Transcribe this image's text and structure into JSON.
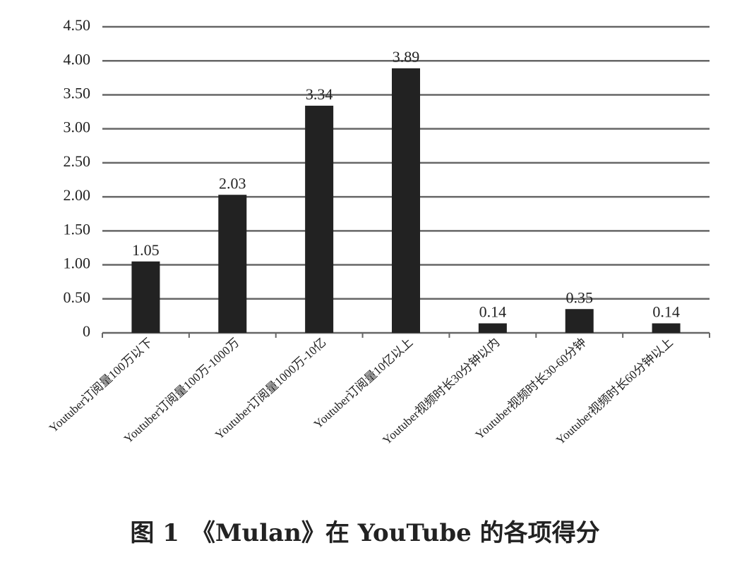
{
  "chart_data": {
    "type": "bar",
    "title": "图 1　《Mulan》在 YouTube 的各项得分",
    "categories": [
      "Youtuber订阅量100万以下",
      "Youtuber订阅量100万-1000万",
      "Youtuber订阅量1000万-10亿",
      "Youtuber订阅量10亿以上",
      "Youtuber视频时长30分钟以内",
      "Youtuber视频时长30-60分钟",
      "Youtuber视频时长60分钟以上"
    ],
    "values": [
      1.05,
      2.03,
      3.34,
      3.89,
      0.14,
      0.35,
      0.14
    ],
    "color": "#222222",
    "ylim": [
      0,
      4.5
    ],
    "yticks": [
      0,
      {
        "value": 0.5,
        "label": "0.50"
      },
      {
        "value": 1,
        "label": "1.00"
      },
      {
        "value": 1.5,
        "label": "1.50"
      },
      {
        "value": 2,
        "label": "2.00"
      },
      {
        "value": 2.5,
        "label": "2.50"
      },
      {
        "value": 3,
        "label": "3.00"
      },
      {
        "value": 3.5,
        "label": "3.50"
      },
      {
        "value": 4,
        "label": "4.00"
      },
      {
        "value": 4.5,
        "label": "4.50"
      }
    ],
    "grid": true
  }
}
